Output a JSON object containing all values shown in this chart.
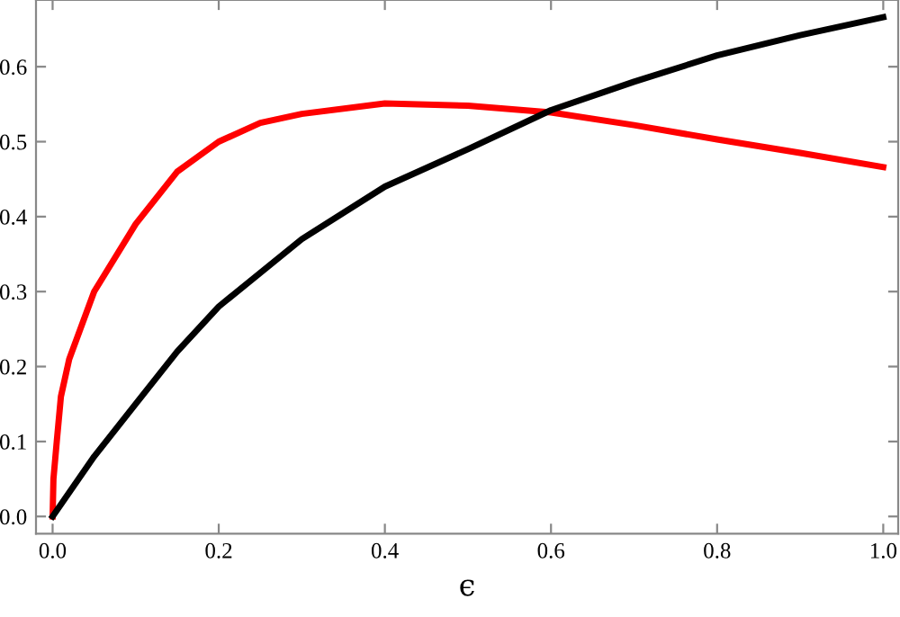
{
  "chart_data": {
    "type": "line",
    "xlabel": "ϵ",
    "xlim": [
      -0.02,
      1.018
    ],
    "ylim": [
      -0.023,
      0.689
    ],
    "xticks": [
      {
        "value": 0,
        "label": "0.0"
      },
      0.2,
      0.4,
      0.6,
      0.8,
      {
        "value": 1,
        "label": "1.0"
      }
    ],
    "yticks": [
      {
        "value": 0,
        "label": "0.0"
      },
      0.1,
      0.2,
      0.3,
      0.4,
      0.5,
      0.6
    ],
    "grid": false,
    "legend": false,
    "marker": "none",
    "line_style": "solid",
    "series": [
      {
        "color": "#ff0000",
        "x": [
          0,
          0.001,
          0.005,
          0.01,
          0.02,
          0.05,
          0.1,
          0.15,
          0.2,
          0.25,
          0.3,
          0.4,
          0.5,
          0.6,
          0.7,
          0.8,
          0.9,
          1.0
        ],
        "values": [
          0,
          0.05,
          0.1,
          0.16,
          0.21,
          0.3,
          0.39,
          0.46,
          0.5,
          0.525,
          0.537,
          0.551,
          0.548,
          0.539,
          0.522,
          0.503,
          0.485,
          0.466
        ]
      },
      {
        "color": "#000000",
        "x": [
          0,
          0.05,
          0.1,
          0.15,
          0.2,
          0.3,
          0.4,
          0.5,
          0.6,
          0.7,
          0.8,
          0.9,
          1.0
        ],
        "values": [
          0,
          0.08,
          0.15,
          0.22,
          0.28,
          0.37,
          0.44,
          0.49,
          0.542,
          0.58,
          0.615,
          0.642,
          0.666
        ]
      }
    ]
  }
}
